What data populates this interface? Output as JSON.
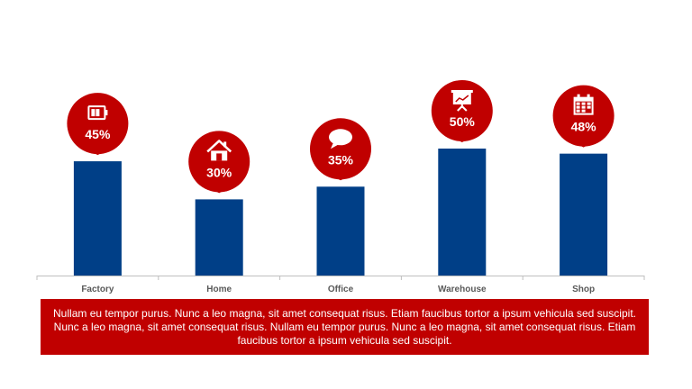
{
  "chart_data": {
    "type": "bar",
    "categories": [
      "Factory",
      "Home",
      "Office",
      "Warehouse",
      "Shop"
    ],
    "values": [
      45,
      30,
      35,
      50,
      48
    ],
    "value_labels": [
      "45%",
      "30%",
      "35%",
      "50%",
      "48%"
    ],
    "icons": [
      "battery-icon",
      "house-icon",
      "speech-bubble-icon",
      "presentation-board-icon",
      "calendar-icon"
    ],
    "ylim": [
      0,
      100
    ],
    "grid": false,
    "colors": {
      "bar": "#003f87",
      "marker": "#c00000",
      "axis": "#bfbfbf"
    }
  },
  "caption": "Nullam eu tempor purus. Nunc a leo magna, sit amet consequat risus. Etiam faucibus tortor a ipsum vehicula sed suscipit. Nunc a leo magna, sit amet consequat risus. Nullam eu tempor purus. Nunc a leo magna, sit amet consequat risus. Etiam faucibus tortor a ipsum vehicula sed suscipit."
}
